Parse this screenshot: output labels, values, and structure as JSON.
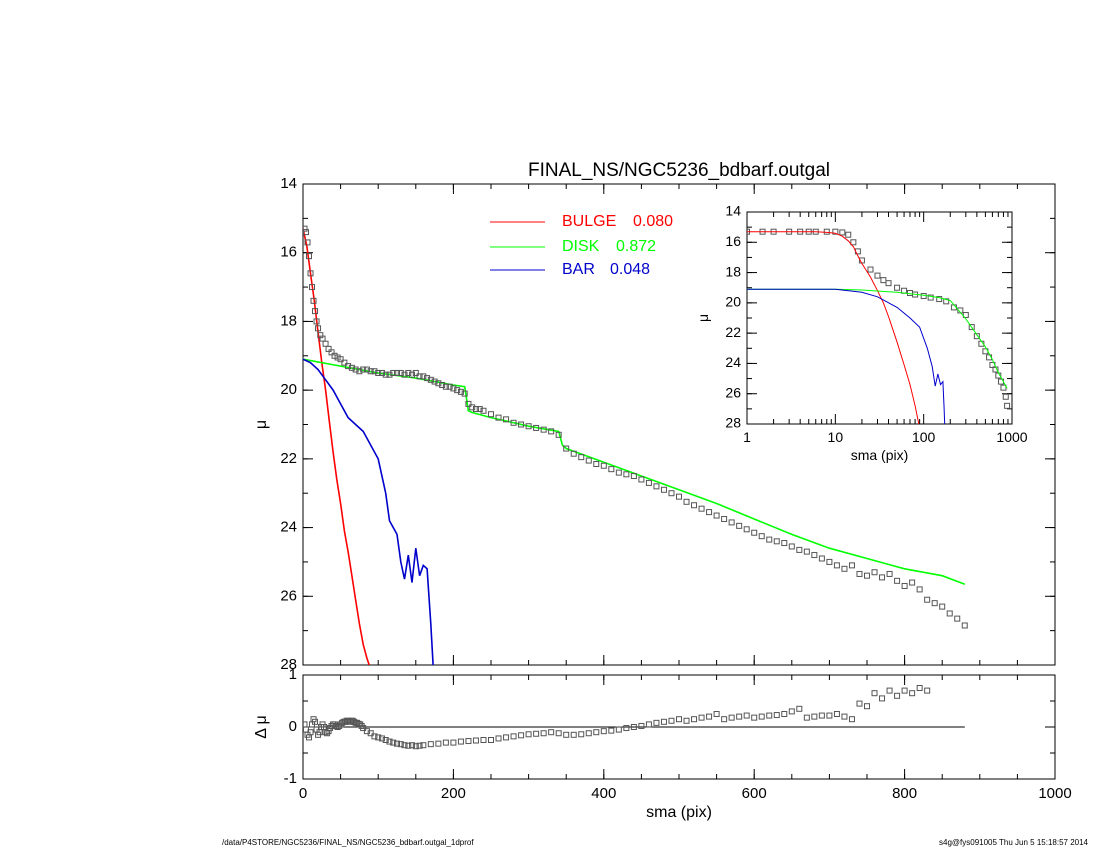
{
  "colors": {
    "bulge": "#ff0000",
    "disk": "#00ff00",
    "bar": "#0000cc",
    "data_points": "#555555",
    "axis": "#000000"
  },
  "footer": {
    "path": "/data/P4STORE/NGC5236/FINAL_NS/NGC5236_bdbarf.outgal_1dprof",
    "stamp": "s4g@fys091005  Thu Jun  5 15:18:57 2014"
  },
  "chart_data": [
    {
      "id": "main",
      "type": "line",
      "title": "FINAL_NS/NGC5236_bdbarf.outgal",
      "xlabel": "",
      "ylabel": "μ",
      "xlim": [
        0,
        1000
      ],
      "ylim": [
        28,
        14
      ],
      "yticks": [
        "14",
        "16",
        "18",
        "20",
        "22",
        "24",
        "26",
        "28"
      ],
      "legend": {
        "placement": "top-center",
        "entries": [
          {
            "name": "BULGE",
            "value": "0.080",
            "color": "#ff0000"
          },
          {
            "name": "DISK",
            "value": "0.872",
            "color": "#00ff00"
          },
          {
            "name": "BAR",
            "value": "0.048",
            "color": "#0000cc"
          }
        ]
      },
      "series": [
        {
          "name": "BULGE",
          "kind": "line",
          "color": "#ff0000",
          "x": [
            0,
            5,
            10,
            15,
            20,
            25,
            30,
            35,
            40,
            45,
            50,
            55,
            60,
            65,
            70,
            75,
            80,
            85,
            88
          ],
          "y": [
            15.3,
            15.8,
            16.6,
            17.4,
            18.3,
            19.2,
            20.0,
            20.9,
            21.8,
            22.6,
            23.3,
            24.1,
            24.7,
            25.4,
            26.1,
            26.8,
            27.4,
            27.8,
            28.0
          ]
        },
        {
          "name": "DISK",
          "kind": "line",
          "color": "#00ff00",
          "x": [
            0,
            50,
            100,
            150,
            200,
            215,
            220,
            225,
            250,
            300,
            340,
            345,
            350,
            400,
            450,
            500,
            550,
            600,
            650,
            700,
            750,
            800,
            850,
            880
          ],
          "y": [
            19.1,
            19.3,
            19.5,
            19.65,
            19.85,
            19.9,
            20.6,
            20.65,
            20.8,
            21.05,
            21.2,
            21.6,
            21.7,
            22.1,
            22.5,
            22.9,
            23.3,
            23.75,
            24.2,
            24.6,
            24.9,
            25.2,
            25.4,
            25.65
          ]
        },
        {
          "name": "BAR",
          "kind": "line",
          "color": "#0000cc",
          "x": [
            0,
            10,
            20,
            30,
            40,
            50,
            60,
            70,
            80,
            90,
            100,
            110,
            115,
            125,
            130,
            135,
            140,
            145,
            150,
            155,
            160,
            165,
            170,
            173
          ],
          "y": [
            19.1,
            19.2,
            19.4,
            19.7,
            20.0,
            20.4,
            20.8,
            21.0,
            21.2,
            21.6,
            22.0,
            23.0,
            23.8,
            24.2,
            25.0,
            25.5,
            24.8,
            25.6,
            24.6,
            25.4,
            25.1,
            25.2,
            26.8,
            28.0
          ]
        },
        {
          "name": "",
          "kind": "scatter",
          "color": "#555555",
          "x": [
            2,
            4,
            6,
            8,
            10,
            12,
            14,
            16,
            18,
            20,
            23,
            26,
            30,
            34,
            38,
            42,
            46,
            50,
            55,
            60,
            65,
            70,
            75,
            80,
            85,
            90,
            95,
            100,
            105,
            110,
            115,
            120,
            125,
            130,
            135,
            140,
            145,
            150,
            155,
            160,
            165,
            170,
            175,
            180,
            185,
            190,
            195,
            200,
            205,
            210,
            215,
            220,
            225,
            230,
            235,
            240,
            250,
            260,
            270,
            280,
            290,
            300,
            310,
            320,
            330,
            340,
            350,
            360,
            370,
            380,
            390,
            400,
            410,
            420,
            430,
            440,
            450,
            460,
            470,
            480,
            490,
            500,
            510,
            520,
            530,
            540,
            550,
            560,
            570,
            580,
            590,
            600,
            610,
            620,
            630,
            640,
            650,
            660,
            670,
            680,
            690,
            700,
            710,
            720,
            730,
            740,
            750,
            760,
            770,
            780,
            790,
            800,
            810,
            820,
            830,
            840,
            850,
            860,
            870,
            880
          ],
          "y": [
            15.3,
            15.4,
            15.7,
            16.1,
            16.6,
            17.0,
            17.4,
            17.7,
            18.0,
            18.2,
            18.4,
            18.5,
            18.65,
            18.8,
            18.9,
            19.0,
            19.05,
            19.1,
            19.2,
            19.3,
            19.35,
            19.4,
            19.45,
            19.4,
            19.4,
            19.45,
            19.45,
            19.5,
            19.5,
            19.55,
            19.55,
            19.5,
            19.5,
            19.5,
            19.55,
            19.5,
            19.55,
            19.5,
            19.6,
            19.6,
            19.65,
            19.7,
            19.75,
            19.8,
            19.85,
            19.9,
            19.9,
            19.95,
            20.0,
            20.05,
            20.1,
            20.4,
            20.5,
            20.55,
            20.55,
            20.6,
            20.7,
            20.8,
            20.85,
            20.95,
            21.0,
            21.05,
            21.1,
            21.15,
            21.2,
            21.3,
            21.7,
            21.85,
            21.95,
            22.05,
            22.15,
            22.2,
            22.3,
            22.4,
            22.45,
            22.5,
            22.6,
            22.7,
            22.8,
            22.9,
            23.0,
            23.1,
            23.25,
            23.35,
            23.45,
            23.55,
            23.65,
            23.75,
            23.85,
            23.95,
            24.05,
            24.15,
            24.25,
            24.35,
            24.4,
            24.45,
            24.55,
            24.65,
            24.7,
            24.8,
            24.9,
            25.0,
            25.1,
            25.2,
            25.1,
            25.35,
            25.4,
            25.3,
            25.45,
            25.35,
            25.55,
            25.7,
            25.6,
            25.8,
            26.1,
            26.2,
            26.3,
            26.5,
            26.65,
            26.85
          ]
        }
      ]
    },
    {
      "id": "residual",
      "type": "scatter",
      "xlabel": "sma (pix)",
      "ylabel": "Δ μ",
      "xlim": [
        0,
        1000
      ],
      "ylim": [
        -1,
        1
      ],
      "xticks": [
        "0",
        "200",
        "400",
        "600",
        "800",
        "1000"
      ],
      "yticks": [
        "1",
        "0",
        "-1"
      ],
      "series": [
        {
          "name": "",
          "kind": "line",
          "color": "#000000",
          "x": [
            0,
            880
          ],
          "y": [
            0,
            0
          ]
        },
        {
          "name": "",
          "kind": "scatter",
          "color": "#555555",
          "x": [
            2,
            4,
            6,
            8,
            10,
            12,
            14,
            16,
            18,
            20,
            22,
            24,
            26,
            28,
            30,
            32,
            34,
            36,
            38,
            40,
            42,
            44,
            46,
            48,
            50,
            52,
            54,
            56,
            58,
            60,
            62,
            64,
            66,
            68,
            70,
            72,
            74,
            76,
            78,
            80,
            85,
            90,
            95,
            100,
            105,
            110,
            115,
            120,
            125,
            130,
            135,
            140,
            145,
            150,
            155,
            160,
            170,
            180,
            190,
            200,
            210,
            220,
            230,
            240,
            250,
            260,
            270,
            280,
            290,
            300,
            310,
            320,
            330,
            340,
            350,
            360,
            370,
            380,
            390,
            400,
            410,
            420,
            430,
            440,
            450,
            460,
            470,
            480,
            490,
            500,
            510,
            520,
            530,
            540,
            550,
            560,
            570,
            580,
            590,
            600,
            610,
            620,
            630,
            640,
            650,
            660,
            670,
            680,
            690,
            700,
            710,
            720,
            730,
            740,
            750,
            760,
            770,
            780,
            790,
            800,
            810,
            820,
            830
          ],
          "y": [
            0.05,
            -0.05,
            -0.15,
            -0.2,
            -0.1,
            0.05,
            0.15,
            0.1,
            -0.05,
            -0.15,
            -0.1,
            0.0,
            0.05,
            0.0,
            -0.1,
            -0.12,
            -0.08,
            -0.02,
            0.02,
            0.05,
            0.05,
            0.02,
            0.0,
            0.02,
            0.05,
            0.08,
            0.1,
            0.1,
            0.12,
            0.12,
            0.1,
            0.12,
            0.12,
            0.1,
            0.08,
            0.08,
            0.06,
            0.05,
            0.02,
            -0.02,
            -0.08,
            -0.12,
            -0.18,
            -0.2,
            -0.22,
            -0.25,
            -0.28,
            -0.3,
            -0.32,
            -0.33,
            -0.35,
            -0.36,
            -0.35,
            -0.37,
            -0.36,
            -0.35,
            -0.33,
            -0.32,
            -0.3,
            -0.3,
            -0.28,
            -0.27,
            -0.26,
            -0.25,
            -0.25,
            -0.22,
            -0.2,
            -0.18,
            -0.16,
            -0.14,
            -0.13,
            -0.12,
            -0.1,
            -0.12,
            -0.15,
            -0.15,
            -0.14,
            -0.12,
            -0.1,
            -0.08,
            -0.07,
            -0.05,
            -0.02,
            0.0,
            0.02,
            0.05,
            0.08,
            0.1,
            0.12,
            0.15,
            0.12,
            0.15,
            0.18,
            0.2,
            0.25,
            0.15,
            0.18,
            0.2,
            0.22,
            0.18,
            0.2,
            0.22,
            0.23,
            0.25,
            0.3,
            0.35,
            0.18,
            0.2,
            0.22,
            0.22,
            0.25,
            0.2,
            0.15,
            0.45,
            0.4,
            0.65,
            0.55,
            0.7,
            0.6,
            0.7,
            0.65,
            0.75,
            0.7
          ]
        }
      ]
    },
    {
      "id": "inset",
      "type": "line",
      "xlabel": "sma (pix)",
      "ylabel": "μ",
      "xscale": "log",
      "xlim": [
        1,
        1000
      ],
      "ylim": [
        28,
        14
      ],
      "xticks": [
        "1",
        "10",
        "100",
        "1000"
      ],
      "yticks": [
        "14",
        "16",
        "18",
        "20",
        "22",
        "24",
        "26",
        "28"
      ],
      "series": [
        {
          "name": "",
          "kind": "scatter",
          "color": "#555555",
          "x": [
            1,
            1.5,
            2,
            3,
            4,
            5,
            6,
            8,
            10,
            12,
            14,
            16,
            18,
            20,
            25,
            30,
            35,
            40,
            50,
            60,
            70,
            80,
            100,
            120,
            150,
            180,
            220,
            260,
            300,
            350,
            400,
            450,
            500,
            550,
            600,
            650,
            700,
            750,
            800,
            850,
            880
          ],
          "y": [
            15.3,
            15.3,
            15.3,
            15.3,
            15.3,
            15.3,
            15.3,
            15.3,
            15.3,
            15.35,
            15.5,
            16.0,
            16.6,
            17.2,
            17.8,
            18.2,
            18.5,
            18.7,
            19.0,
            19.2,
            19.35,
            19.45,
            19.55,
            19.65,
            19.75,
            19.9,
            20.3,
            20.5,
            20.8,
            21.6,
            22.2,
            22.7,
            23.2,
            23.6,
            24.1,
            24.4,
            24.8,
            25.2,
            25.6,
            26.2,
            26.8
          ]
        },
        {
          "name": "BULGE",
          "kind": "line",
          "color": "#ff0000",
          "x": [
            1,
            2,
            4,
            6,
            8,
            10,
            12,
            14,
            16,
            18,
            20,
            25,
            30,
            35,
            40,
            50,
            60,
            70,
            80,
            88
          ],
          "y": [
            15.3,
            15.3,
            15.3,
            15.3,
            15.35,
            15.4,
            15.6,
            15.9,
            16.3,
            16.9,
            17.4,
            18.3,
            19.2,
            20.0,
            20.9,
            22.6,
            24.1,
            25.4,
            26.8,
            28.0
          ]
        },
        {
          "name": "DISK",
          "kind": "line",
          "color": "#00ff00",
          "x": [
            1,
            5,
            10,
            20,
            50,
            100,
            150,
            200,
            300,
            400,
            500,
            600,
            700,
            800,
            880
          ],
          "y": [
            19.1,
            19.1,
            19.1,
            19.15,
            19.3,
            19.5,
            19.65,
            19.85,
            21.05,
            22.1,
            22.9,
            23.75,
            24.6,
            25.2,
            25.65
          ]
        },
        {
          "name": "BAR",
          "kind": "line",
          "color": "#0000cc",
          "x": [
            1,
            5,
            10,
            20,
            30,
            50,
            70,
            90,
            110,
            125,
            135,
            145,
            155,
            165,
            170,
            173
          ],
          "y": [
            19.1,
            19.1,
            19.1,
            19.3,
            19.6,
            20.3,
            21.0,
            21.6,
            23.0,
            24.2,
            25.5,
            24.7,
            25.4,
            25.2,
            26.8,
            28.0
          ]
        }
      ]
    }
  ]
}
